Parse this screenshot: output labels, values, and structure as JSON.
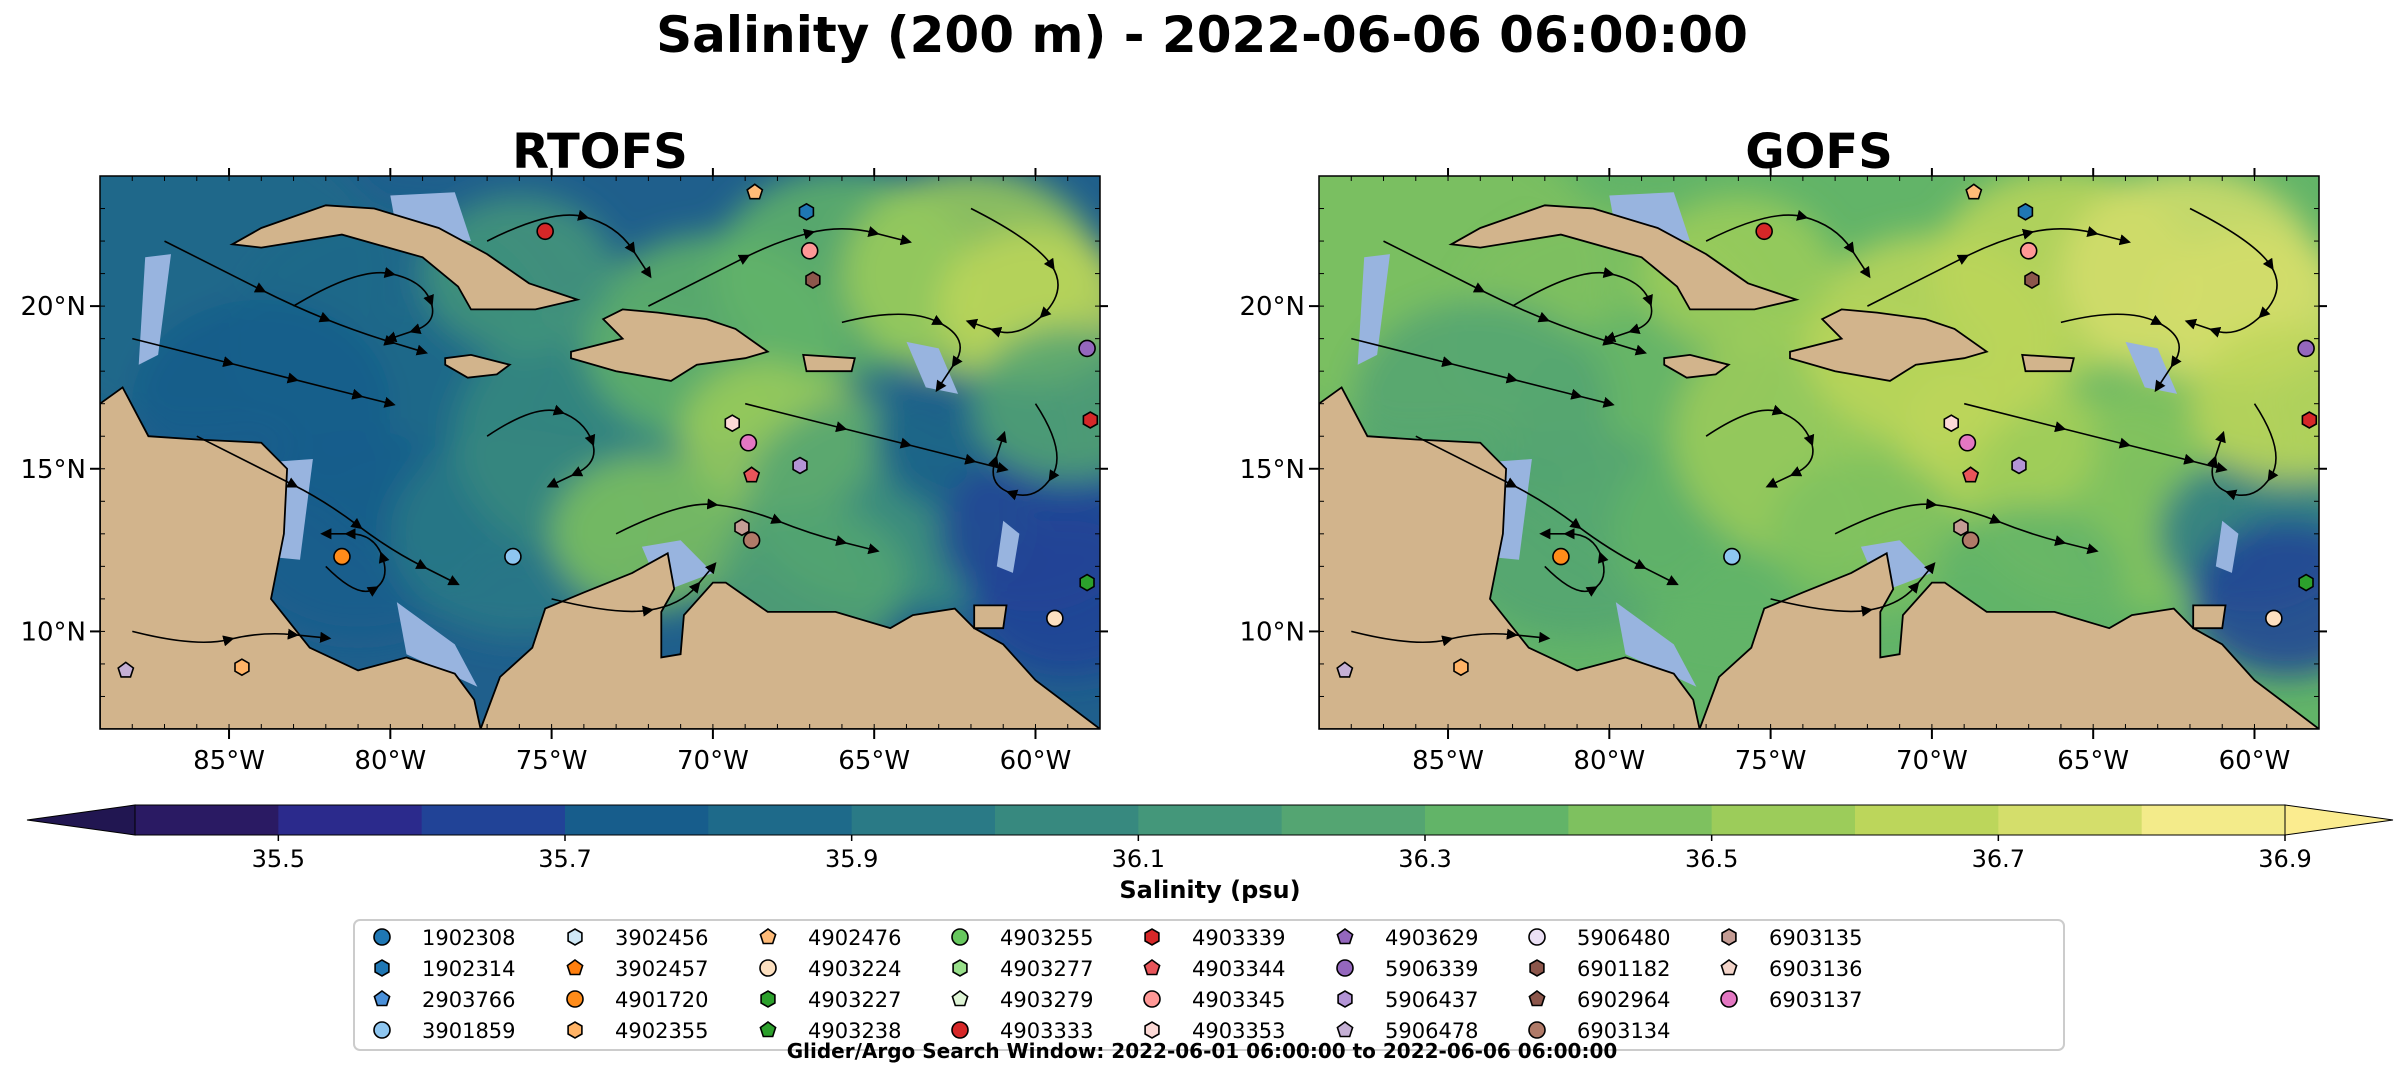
{
  "figure": {
    "title": "Salinity (200 m) - 2022-06-06 06:00:00",
    "search_window": "Glider/Argo Search Window: 2022-06-01 06:00:00 to 2022-06-06 06:00:00"
  },
  "colors": {
    "land": "#d2b48c",
    "shallow_water": "#98b4df",
    "colormap": [
      "#2a1a63",
      "#2b2a8c",
      "#214397",
      "#175d8c",
      "#1e6a8a",
      "#2a7a86",
      "#37897f",
      "#44977a",
      "#54a572",
      "#62b468",
      "#7ec15f",
      "#9ccc5a",
      "#bcd65b",
      "#d4de6b",
      "#f3eb8a"
    ],
    "under_color": "#211651",
    "over_color": "#fbec8f"
  },
  "axes": {
    "x_ticks": [
      "85°W",
      "80°W",
      "75°W",
      "70°W",
      "65°W",
      "60°W"
    ],
    "y_ticks": [
      "20°N",
      "15°N",
      "10°N"
    ]
  },
  "panels": [
    {
      "title": "RTOFS",
      "id": "rtofs"
    },
    {
      "title": "GOFS",
      "id": "gofs"
    }
  ],
  "colorbar": {
    "label": "Salinity (psu)",
    "tick_labels": [
      "35.5",
      "35.7",
      "35.9",
      "36.1",
      "36.3",
      "36.5",
      "36.7",
      "36.9"
    ]
  },
  "legend": {
    "entries": [
      {
        "id": "1902308",
        "color": "#1f77b4",
        "marker": "circle"
      },
      {
        "id": "1902314",
        "color": "#1f77b4",
        "marker": "hexagon"
      },
      {
        "id": "2903766",
        "color": "#4a90d9",
        "marker": "pentagon"
      },
      {
        "id": "3901859",
        "color": "#8ec6f0",
        "marker": "circle"
      },
      {
        "id": "3902456",
        "color": "#cfe8f6",
        "marker": "hexagon"
      },
      {
        "id": "3902457",
        "color": "#ff7f0e",
        "marker": "pentagon"
      },
      {
        "id": "4901720",
        "color": "#ff8c1a",
        "marker": "circle"
      },
      {
        "id": "4902355",
        "color": "#ffb366",
        "marker": "hexagon"
      },
      {
        "id": "4902476",
        "color": "#ffbb78",
        "marker": "pentagon"
      },
      {
        "id": "4903224",
        "color": "#fde0c0",
        "marker": "circle"
      },
      {
        "id": "4903227",
        "color": "#2ca02c",
        "marker": "hexagon"
      },
      {
        "id": "4903238",
        "color": "#2ca02c",
        "marker": "pentagon"
      },
      {
        "id": "4903255",
        "color": "#67c85e",
        "marker": "circle"
      },
      {
        "id": "4903277",
        "color": "#98df8a",
        "marker": "hexagon"
      },
      {
        "id": "4903279",
        "color": "#dff5d6",
        "marker": "pentagon"
      },
      {
        "id": "4903333",
        "color": "#d62728",
        "marker": "circle"
      },
      {
        "id": "4903339",
        "color": "#d62728",
        "marker": "hexagon"
      },
      {
        "id": "4903344",
        "color": "#e8555a",
        "marker": "pentagon"
      },
      {
        "id": "4903345",
        "color": "#ff9896",
        "marker": "circle"
      },
      {
        "id": "4903353",
        "color": "#fcd9d6",
        "marker": "hexagon"
      },
      {
        "id": "4903629",
        "color": "#9467bd",
        "marker": "pentagon"
      },
      {
        "id": "5906339",
        "color": "#9467bd",
        "marker": "circle"
      },
      {
        "id": "5906437",
        "color": "#b394d6",
        "marker": "hexagon"
      },
      {
        "id": "5906478",
        "color": "#c5b0d5",
        "marker": "pentagon"
      },
      {
        "id": "5906480",
        "color": "#ebe0f5",
        "marker": "circle"
      },
      {
        "id": "6901182",
        "color": "#8c564b",
        "marker": "hexagon"
      },
      {
        "id": "6902964",
        "color": "#8c564b",
        "marker": "pentagon"
      },
      {
        "id": "6903134",
        "color": "#b07a68",
        "marker": "circle"
      },
      {
        "id": "6903135",
        "color": "#c49c94",
        "marker": "hexagon"
      },
      {
        "id": "6903136",
        "color": "#f3d4c9",
        "marker": "pentagon"
      },
      {
        "id": "6903137",
        "color": "#e377c2",
        "marker": "circle"
      }
    ]
  },
  "chart_data": [
    {
      "type": "heatmap",
      "title": "RTOFS",
      "xlabel": "",
      "ylabel": "",
      "xlim": [
        -89,
        -58
      ],
      "ylim": [
        7,
        24
      ],
      "x_ticks": [
        -85,
        -80,
        -75,
        -70,
        -65,
        -60
      ],
      "y_ticks": [
        20,
        15,
        10
      ],
      "color_range": [
        35.5,
        36.9
      ],
      "floats": [
        {
          "id": "4903333",
          "lon": -75.2,
          "lat": 22.3
        },
        {
          "id": "4902476",
          "lon": -68.7,
          "lat": 23.5
        },
        {
          "id": "1902314",
          "lon": -67.1,
          "lat": 22.9
        },
        {
          "id": "4903345",
          "lon": -67.0,
          "lat": 21.7
        },
        {
          "id": "6901182",
          "lon": -66.9,
          "lat": 20.8
        },
        {
          "id": "5906339",
          "lon": -58.4,
          "lat": 18.7
        },
        {
          "id": "4903339",
          "lon": -58.3,
          "lat": 16.5
        },
        {
          "id": "4903353",
          "lon": -69.4,
          "lat": 16.4
        },
        {
          "id": "6903137",
          "lon": -68.9,
          "lat": 15.8
        },
        {
          "id": "5906437",
          "lon": -67.3,
          "lat": 15.1
        },
        {
          "id": "4903344",
          "lon": -68.8,
          "lat": 14.8
        },
        {
          "id": "6903135",
          "lon": -69.1,
          "lat": 13.2
        },
        {
          "id": "6903134",
          "lon": -68.8,
          "lat": 12.8
        },
        {
          "id": "4901720",
          "lon": -81.5,
          "lat": 12.3
        },
        {
          "id": "3901859",
          "lon": -76.2,
          "lat": 12.3
        },
        {
          "id": "4903227",
          "lon": -58.4,
          "lat": 11.5
        },
        {
          "id": "4903224",
          "lon": -59.4,
          "lat": 10.4
        },
        {
          "id": "5906478",
          "lon": -88.2,
          "lat": 8.8
        },
        {
          "id": "4902355",
          "lon": -84.6,
          "lat": 8.9
        }
      ]
    },
    {
      "type": "heatmap",
      "title": "GOFS",
      "xlabel": "",
      "ylabel": "",
      "xlim": [
        -89,
        -58
      ],
      "ylim": [
        7,
        24
      ],
      "x_ticks": [
        -85,
        -80,
        -75,
        -70,
        -65,
        -60
      ],
      "y_ticks": [
        20,
        15,
        10
      ],
      "color_range": [
        35.5,
        36.9
      ],
      "floats": [
        {
          "id": "4903333",
          "lon": -75.2,
          "lat": 22.3
        },
        {
          "id": "4902476",
          "lon": -68.7,
          "lat": 23.5
        },
        {
          "id": "1902314",
          "lon": -67.1,
          "lat": 22.9
        },
        {
          "id": "4903345",
          "lon": -67.0,
          "lat": 21.7
        },
        {
          "id": "6901182",
          "lon": -66.9,
          "lat": 20.8
        },
        {
          "id": "5906339",
          "lon": -58.4,
          "lat": 18.7
        },
        {
          "id": "4903339",
          "lon": -58.3,
          "lat": 16.5
        },
        {
          "id": "4903353",
          "lon": -69.4,
          "lat": 16.4
        },
        {
          "id": "6903137",
          "lon": -68.9,
          "lat": 15.8
        },
        {
          "id": "5906437",
          "lon": -67.3,
          "lat": 15.1
        },
        {
          "id": "4903344",
          "lon": -68.8,
          "lat": 14.8
        },
        {
          "id": "6903135",
          "lon": -69.1,
          "lat": 13.2
        },
        {
          "id": "6903134",
          "lon": -68.8,
          "lat": 12.8
        },
        {
          "id": "4901720",
          "lon": -81.5,
          "lat": 12.3
        },
        {
          "id": "3901859",
          "lon": -76.2,
          "lat": 12.3
        },
        {
          "id": "4903227",
          "lon": -58.4,
          "lat": 11.5
        },
        {
          "id": "4903224",
          "lon": -59.4,
          "lat": 10.4
        },
        {
          "id": "5906478",
          "lon": -88.2,
          "lat": 8.8
        },
        {
          "id": "4902355",
          "lon": -84.6,
          "lat": 8.9
        }
      ]
    }
  ]
}
